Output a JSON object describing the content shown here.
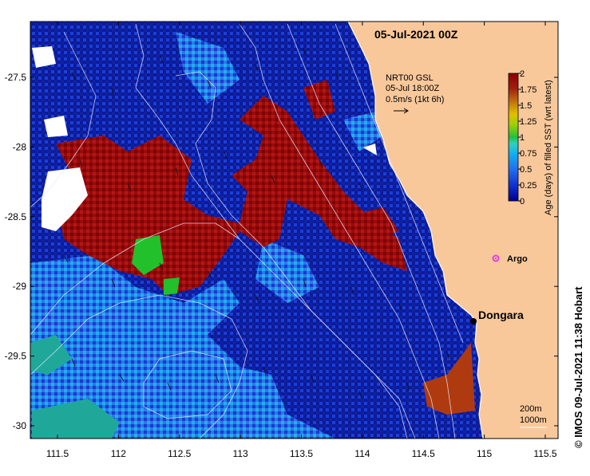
{
  "title": "05-Jul-2021 00Z",
  "current_legend": {
    "line1": "NRT00 GSL",
    "line2": "05-Jul 18:00Z",
    "line3": "0.5m/s (1kt 6h)"
  },
  "colorbar": {
    "title": "Age (days) of filled SST (wrt latest)",
    "min": 0,
    "max": 2,
    "tick_labels": [
      "2",
      "1.75",
      "1.5",
      "1.25",
      "1",
      "0.75",
      "0.5",
      "0.25",
      "0"
    ],
    "colors": [
      "#8b0000",
      "#a01010",
      "#b8860b",
      "#c8c800",
      "#20c020",
      "#40e0d0",
      "#00b0f0",
      "#2050f0",
      "#000090"
    ]
  },
  "x_axis": {
    "ticks": [
      111.5,
      112,
      112.5,
      113,
      113.5,
      114,
      114.5,
      115,
      115.5
    ],
    "tick_labels": [
      "111.5",
      "112",
      "112.5",
      "113",
      "113.5",
      "114",
      "114.5",
      "115",
      "115.5"
    ]
  },
  "y_axis": {
    "ticks": [
      -27.5,
      -28,
      -28.5,
      -29,
      -29.5,
      -30
    ],
    "tick_labels": [
      "-27.5",
      "-28",
      "-28.5",
      "-29",
      "-29.5",
      "-30"
    ]
  },
  "places": {
    "argo": "Argo",
    "dongara": "Dongara"
  },
  "isobaths": {
    "label1": "200m",
    "label2": "1000m"
  },
  "credit": "© IMOS 09-Jul-2021 11:38 Hobart",
  "colors": {
    "land": "#f9c89a",
    "ocean_deep": "#0a1a9a",
    "argo": "#e040e0"
  }
}
